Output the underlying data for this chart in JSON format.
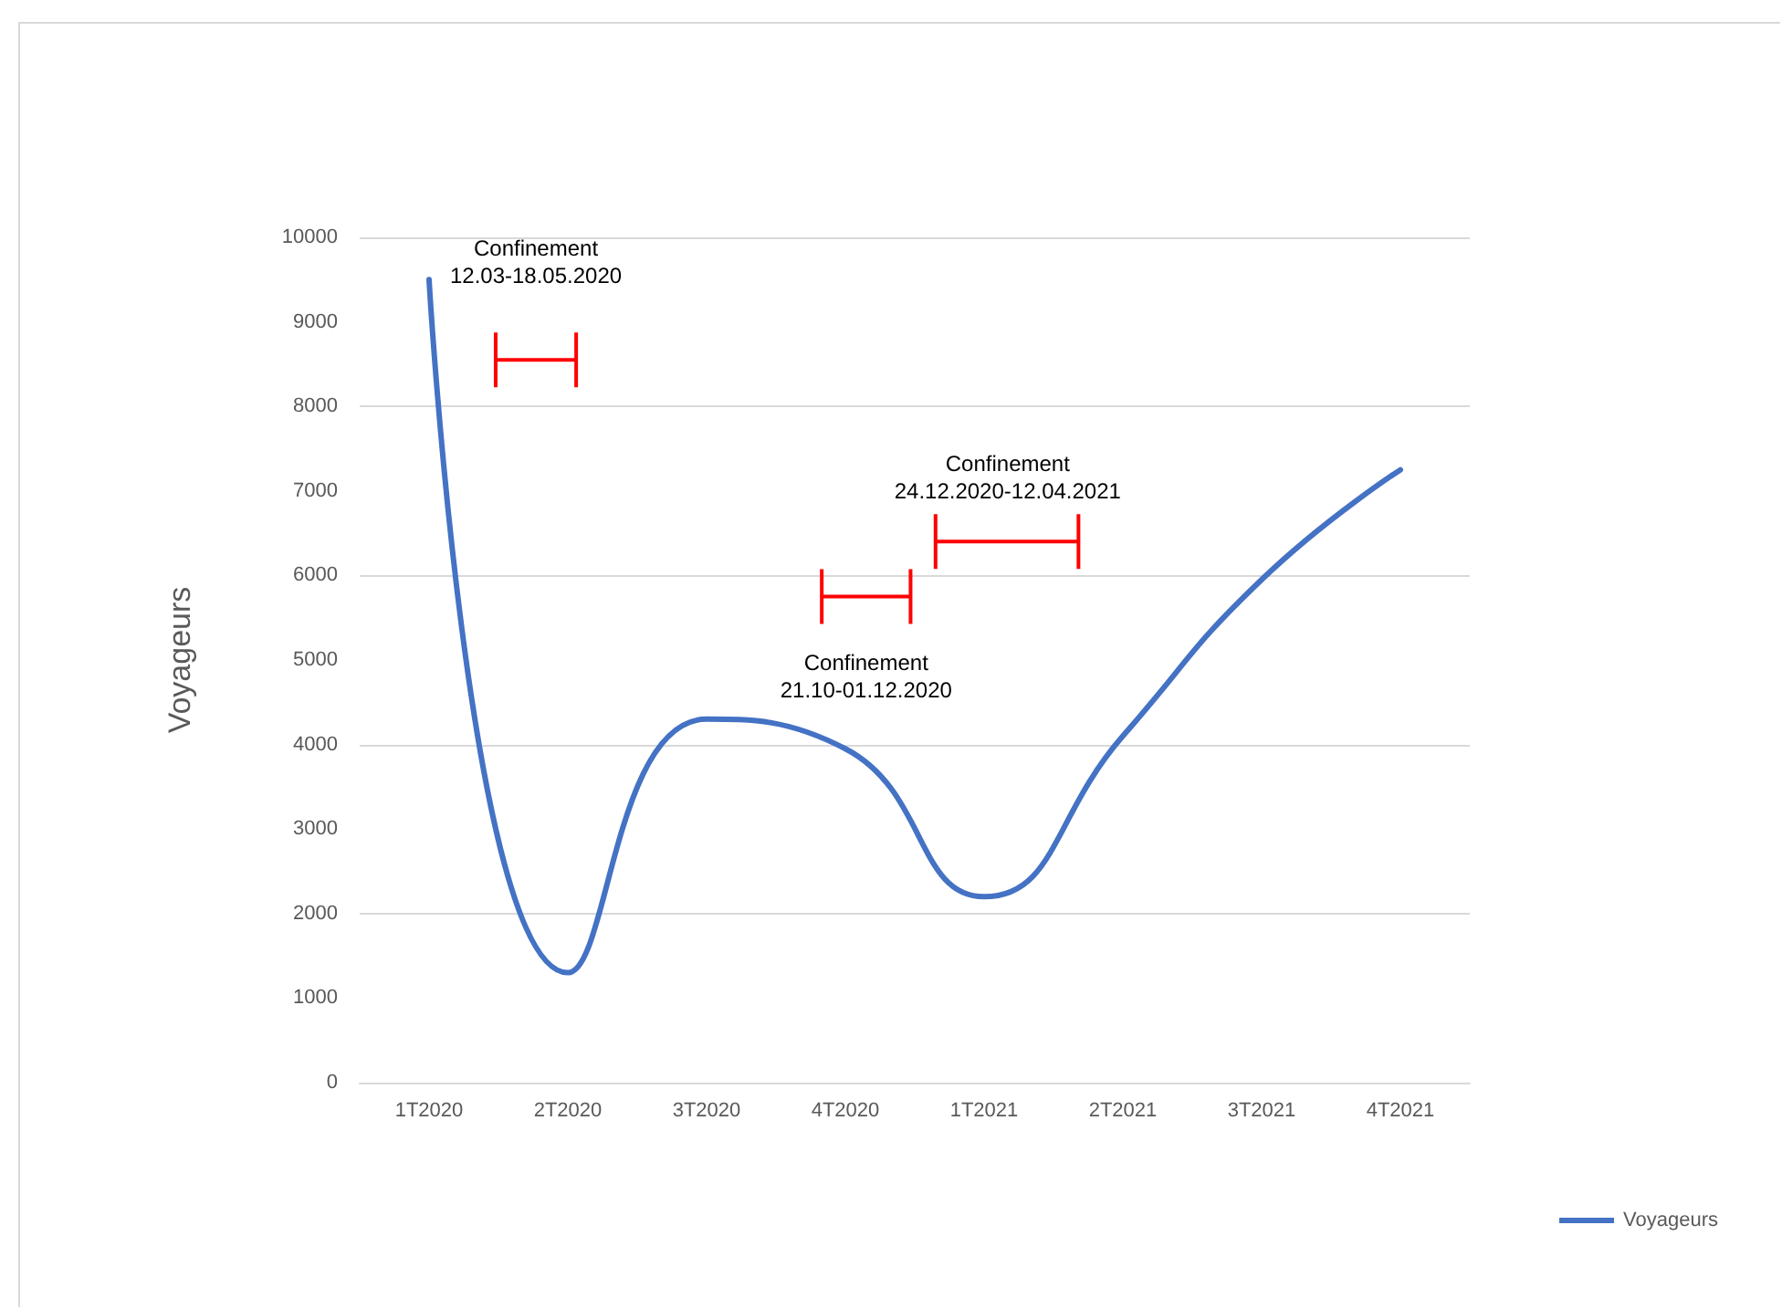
{
  "chart_data": {
    "type": "line",
    "ylabel": "Voyageurs",
    "categories": [
      "1T2020",
      "2T2020",
      "3T2020",
      "4T2020",
      "1T2021",
      "2T2021",
      "3T2021",
      "4T2021"
    ],
    "series": [
      {
        "name": "Voyageurs",
        "color": "#4472c4",
        "values": [
          9500,
          1300,
          4300,
          3950,
          2200,
          4100,
          5950,
          7250
        ]
      }
    ],
    "ylim": [
      0,
      10000
    ],
    "yticks": [
      0,
      1000,
      2000,
      3000,
      4000,
      5000,
      6000,
      7000,
      8000,
      9000,
      10000
    ],
    "grid": "y",
    "legend": "bottom right",
    "marker": "none",
    "line_style": "solid",
    "annotations": [
      "Confinement\n12.03-18.05.2020",
      "Confinement\n21.10-01.12.2020",
      "Confinement\n24.12.2020-12.04.2021"
    ]
  }
}
